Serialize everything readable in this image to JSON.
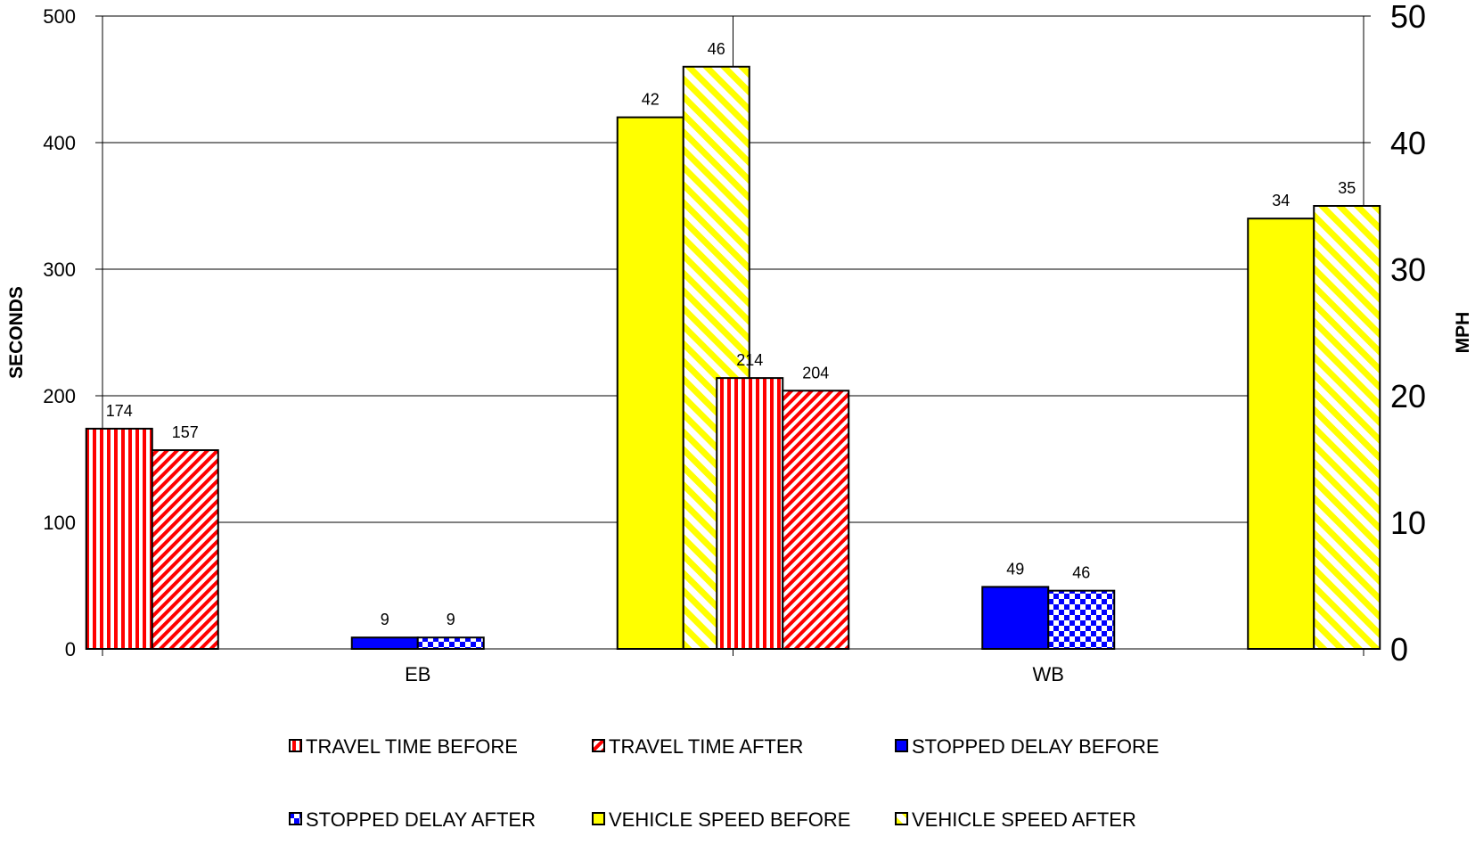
{
  "chart_data": {
    "type": "bar",
    "categories": [
      "EB",
      "WB"
    ],
    "ylabel": "SECONDS",
    "ylabel_right": "MPH",
    "ylim": [
      0,
      500
    ],
    "ylim_right": [
      0,
      50
    ],
    "yticks": [
      "0",
      "100",
      "200",
      "300",
      "400",
      "500"
    ],
    "yticks_right": [
      "0",
      "10",
      "20",
      "30",
      "40",
      "50"
    ],
    "grid": true,
    "legend_position": "bottom",
    "series": [
      {
        "name": "TRAVEL TIME BEFORE",
        "values": [
          174,
          214
        ],
        "axis": "left",
        "color": "#ff0000",
        "pattern": "vertical-stripes"
      },
      {
        "name": "TRAVEL TIME AFTER",
        "values": [
          157,
          204
        ],
        "axis": "left",
        "color": "#ff0000",
        "pattern": "diagonal-stripes"
      },
      {
        "name": "STOPPED DELAY BEFORE",
        "values": [
          9,
          49
        ],
        "axis": "left",
        "color": "#0000ff",
        "pattern": "solid"
      },
      {
        "name": "STOPPED DELAY AFTER",
        "values": [
          9,
          46
        ],
        "axis": "left",
        "color": "#0000ff",
        "pattern": "checker"
      },
      {
        "name": "VEHICLE SPEED BEFORE",
        "values": [
          42,
          34
        ],
        "axis": "right",
        "color": "#ffff00",
        "pattern": "solid"
      },
      {
        "name": "VEHICLE SPEED AFTER",
        "values": [
          46,
          35
        ],
        "axis": "right",
        "color": "#ffff00",
        "pattern": "diagonal-stripes"
      }
    ]
  }
}
